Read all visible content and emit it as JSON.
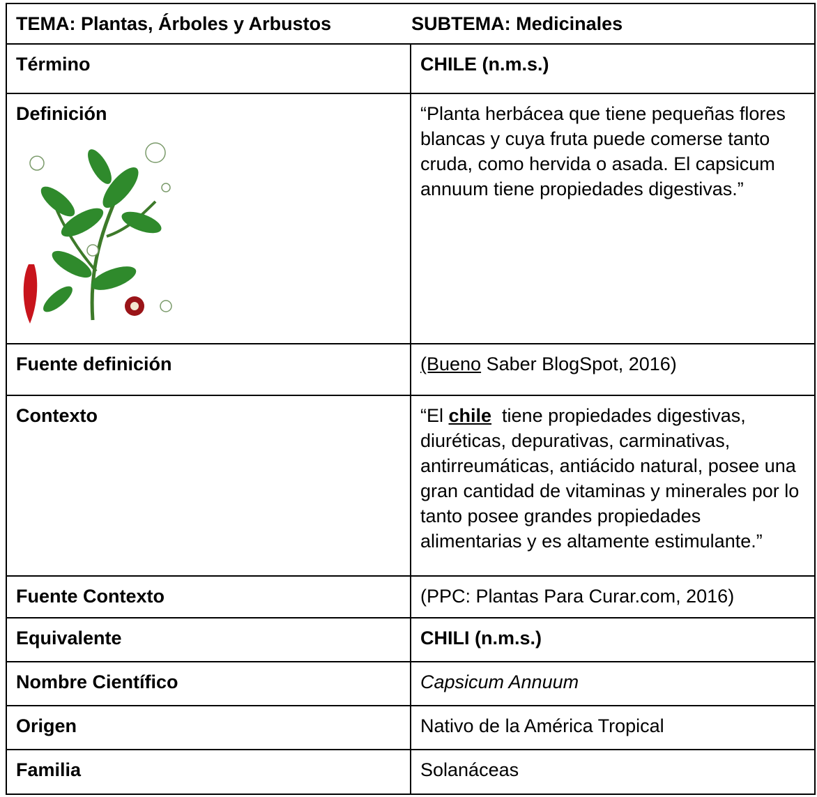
{
  "header": {
    "tema": "TEMA: Plantas, Árboles y Arbustos",
    "subtema": "SUBTEMA: Medicinales"
  },
  "rows": [
    {
      "label": "Término",
      "value": "CHILE (n.m.s.)"
    },
    {
      "label": "Definición",
      "value": "“Planta herbácea que tiene pequeñas flores blancas y cuya fruta puede comerse tanto cruda, como hervida o asada. El capsicum annuum tiene propiedades digestivas.”"
    },
    {
      "label": "Fuente definición",
      "value": {
        "linked": "(Bueno",
        "rest": " Saber BlogSpot, 2016)"
      }
    },
    {
      "label": "Contexto",
      "value": {
        "before": "“El ",
        "term": "chile",
        "after": "  tiene propiedades digestivas, diuréticas, depurativas, carminativas, antirreumáticas, antiácido natural, posee una gran cantidad de vitaminas y minerales por lo tanto posee grandes propiedades alimentarias y es altamente estimulante.”"
      }
    },
    {
      "label": "Fuente Contexto",
      "value": "(PPC: Plantas Para Curar.com, 2016)"
    },
    {
      "label": "Equivalente",
      "value": "CHILI (n.m.s.)"
    },
    {
      "label": "Nombre Científico",
      "value": "Capsicum Annuum"
    },
    {
      "label": "Origen",
      "value": "Nativo de la América Tropical"
    },
    {
      "label": "Familia",
      "value": "Solanáceas"
    }
  ]
}
